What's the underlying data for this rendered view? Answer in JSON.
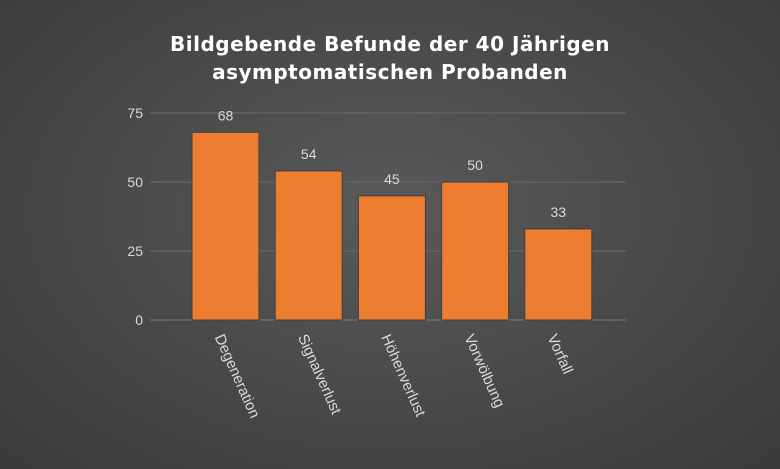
{
  "chart_data": {
    "type": "bar",
    "title_lines": [
      "Bildgebende Befunde der 40 Jährigen",
      "asymptomatischen Probanden"
    ],
    "categories": [
      "Degeneration",
      "Signalverlust",
      "Höhenverlust",
      "Vorwölbung",
      "Vorfall"
    ],
    "values": [
      68,
      54,
      45,
      50,
      33
    ],
    "data_labels": [
      "68",
      "54",
      "45",
      "50",
      "33"
    ],
    "y_ticks": [
      0,
      25,
      50,
      75
    ],
    "ylim": [
      0,
      75
    ],
    "grid": true,
    "legend": "none",
    "colors": {
      "bar": "#ED7D31",
      "bar_edge": "#3f3f3f",
      "text": "#D9D9D9",
      "title": "#FFFFFF",
      "grid": "#6a6a6a"
    }
  }
}
